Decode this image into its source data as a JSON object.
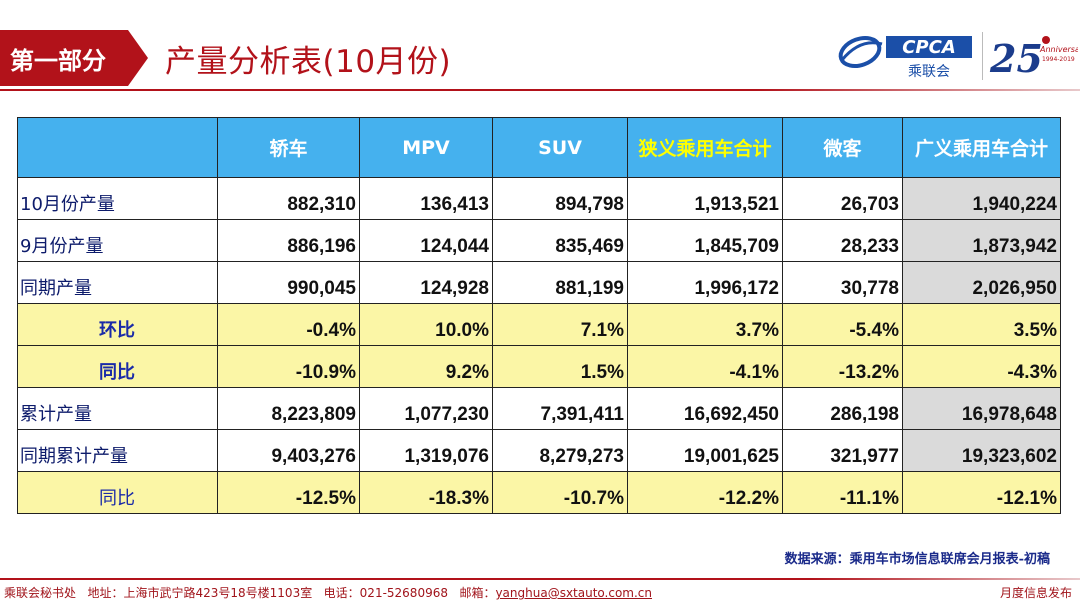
{
  "header": {
    "section_tab": "第一部分",
    "title": "产量分析表(10月份)",
    "logo": {
      "brand": "CPCA",
      "brand_cn": "乘联会",
      "anniv_number": "25",
      "anniv_word": "Anniversary",
      "anniv_years": "1994-2019"
    }
  },
  "table": {
    "columns": [
      "",
      "轿车",
      "MPV",
      "SUV",
      "狭义乘用车合计",
      "微客",
      "广义乘用车合计"
    ],
    "rows": [
      {
        "label": "10月份产量",
        "values": [
          "882,310",
          "136,413",
          "894,798",
          "1,913,521",
          "26,703",
          "1,940,224"
        ]
      },
      {
        "label": "9月份产量",
        "values": [
          "886,196",
          "124,044",
          "835,469",
          "1,845,709",
          "28,233",
          "1,873,942"
        ]
      },
      {
        "label": "同期产量",
        "values": [
          "990,045",
          "124,928",
          "881,199",
          "1,996,172",
          "30,778",
          "2,026,950"
        ]
      },
      {
        "label": "环比",
        "values": [
          "-0.4%",
          "10.0%",
          "7.1%",
          "3.7%",
          "-5.4%",
          "3.5%"
        ]
      },
      {
        "label": "同比",
        "values": [
          "-10.9%",
          "9.2%",
          "1.5%",
          "-4.1%",
          "-13.2%",
          "-4.3%"
        ]
      },
      {
        "label": "累计产量",
        "values": [
          "8,223,809",
          "1,077,230",
          "7,391,411",
          "16,692,450",
          "286,198",
          "16,978,648"
        ]
      },
      {
        "label": "同期累计产量",
        "values": [
          "9,403,276",
          "1,319,076",
          "8,279,273",
          "19,001,625",
          "321,977",
          "19,323,602"
        ]
      },
      {
        "label": "同比",
        "values": [
          "-12.5%",
          "-18.3%",
          "-10.7%",
          "-12.2%",
          "-11.1%",
          "-12.1%"
        ]
      }
    ]
  },
  "source_note": "数据来源：乘用车市场信息联席会月报表-初稿",
  "footer": {
    "org": "乘联会秘书处",
    "address_label": "地址：",
    "address": "上海市武宁路423号18号楼1103室",
    "phone_label": "电话：",
    "phone": "021-52680968",
    "email_label": "邮箱：",
    "email": "yanghua@sxtauto.com.cn",
    "right": "月度信息发布"
  },
  "colors": {
    "brand_red": "#b2121a",
    "header_blue": "#45b1ee",
    "ratio_yellow": "#fbf6a6",
    "total_gray": "#dadada",
    "highlight_yellow": "#ffff00"
  }
}
